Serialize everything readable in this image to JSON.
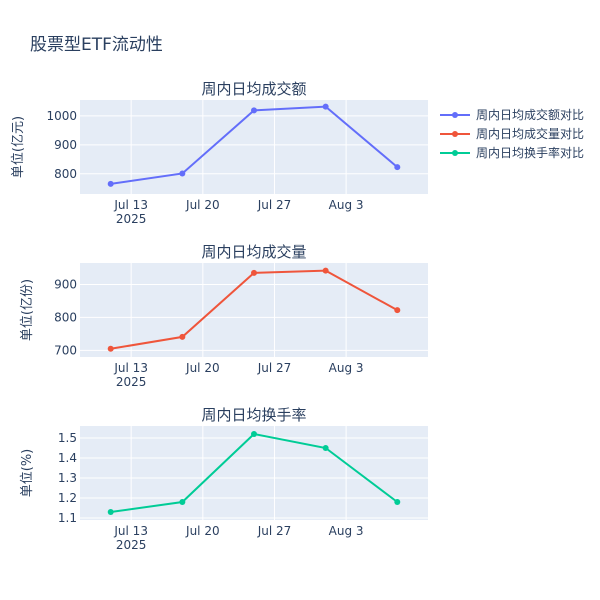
{
  "title": "股票型ETF流动性",
  "colors": {
    "plot_bg": "#E5ECF6",
    "grid": "#ffffff",
    "text": "#2a3f5f"
  },
  "legend": {
    "placement": "top-right",
    "items": [
      {
        "label": "周内日均成交额对比",
        "color": "#636EFA"
      },
      {
        "label": "周内日均成交量对比",
        "color": "#EF553B"
      },
      {
        "label": "周内日均换手率对比",
        "color": "#00CC96"
      }
    ]
  },
  "chart_data": [
    {
      "type": "line",
      "title": "周内日均成交额",
      "ylabel": "单位(亿元)",
      "x": [
        "2025-07-11",
        "2025-07-18",
        "2025-07-25",
        "2025-08-01",
        "2025-08-08"
      ],
      "x_ticks": [
        {
          "date": "2025-07-13",
          "label": "Jul 13",
          "sub": "2025"
        },
        {
          "date": "2025-07-20",
          "label": "Jul 20",
          "sub": ""
        },
        {
          "date": "2025-07-27",
          "label": "Jul 27",
          "sub": ""
        },
        {
          "date": "2025-08-03",
          "label": "Aug 3",
          "sub": ""
        }
      ],
      "ylim": [
        730,
        1055
      ],
      "y_ticks": [
        "800",
        "900",
        "1000"
      ],
      "series": [
        {
          "name": "周内日均成交额对比",
          "color": "#636EFA",
          "values": [
            765,
            801,
            1019,
            1032,
            823
          ]
        }
      ]
    },
    {
      "type": "line",
      "title": "周内日均成交量",
      "ylabel": "单位(亿份)",
      "x": [
        "2025-07-11",
        "2025-07-18",
        "2025-07-25",
        "2025-08-01",
        "2025-08-08"
      ],
      "x_ticks": [
        {
          "date": "2025-07-13",
          "label": "Jul 13",
          "sub": "2025"
        },
        {
          "date": "2025-07-20",
          "label": "Jul 20",
          "sub": ""
        },
        {
          "date": "2025-07-27",
          "label": "Jul 27",
          "sub": ""
        },
        {
          "date": "2025-08-03",
          "label": "Aug 3",
          "sub": ""
        }
      ],
      "ylim": [
        680,
        965
      ],
      "y_ticks": [
        "700",
        "800",
        "900"
      ],
      "series": [
        {
          "name": "周内日均成交量对比",
          "color": "#EF553B",
          "values": [
            705,
            741,
            935,
            942,
            822
          ]
        }
      ]
    },
    {
      "type": "line",
      "title": "周内日均换手率",
      "ylabel": "单位(%)",
      "x": [
        "2025-07-11",
        "2025-07-18",
        "2025-07-25",
        "2025-08-01",
        "2025-08-08"
      ],
      "x_ticks": [
        {
          "date": "2025-07-13",
          "label": "Jul 13",
          "sub": "2025"
        },
        {
          "date": "2025-07-20",
          "label": "Jul 20",
          "sub": ""
        },
        {
          "date": "2025-07-27",
          "label": "Jul 27",
          "sub": ""
        },
        {
          "date": "2025-08-03",
          "label": "Aug 3",
          "sub": ""
        }
      ],
      "ylim": [
        1.09,
        1.56
      ],
      "y_ticks": [
        "1.1",
        "1.2",
        "1.3",
        "1.4",
        "1.5"
      ],
      "series": [
        {
          "name": "周内日均换手率对比",
          "color": "#00CC96",
          "values": [
            1.13,
            1.18,
            1.52,
            1.45,
            1.18
          ]
        }
      ]
    }
  ]
}
